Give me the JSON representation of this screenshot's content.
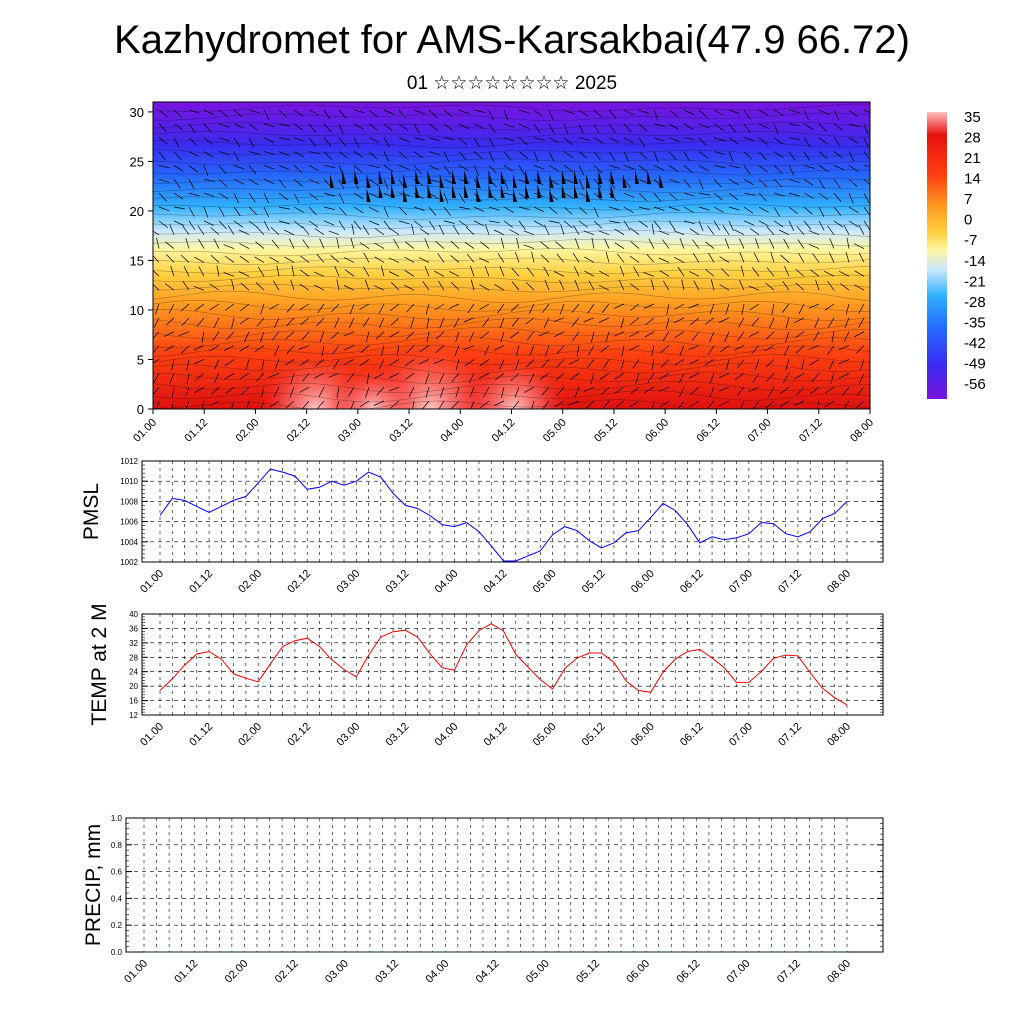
{
  "title": "Kazhydromet for AMS-Karsakbai(47.9 66.72)",
  "subtitle": "01 ☆☆☆☆☆☆☆☆ 2025",
  "x_ticks": [
    "01.00",
    "01.12",
    "02.00",
    "02.12",
    "03.00",
    "03.12",
    "04.00",
    "04.12",
    "05.00",
    "05.12",
    "06.00",
    "06.12",
    "07.00",
    "07.12",
    "08.00"
  ],
  "chart_data": [
    {
      "type": "heatmap",
      "title": "",
      "xlabel": "",
      "ylabel": "",
      "x_ticks": [
        "01.00",
        "01.12",
        "02.00",
        "02.12",
        "03.00",
        "03.12",
        "04.00",
        "04.12",
        "05.00",
        "05.12",
        "06.00",
        "06.12",
        "07.00",
        "07.12",
        "08.00"
      ],
      "y_ticks": [
        0,
        5,
        10,
        15,
        20,
        25,
        30
      ],
      "ylim": [
        0,
        31
      ],
      "colorbar": {
        "labels": [
          "35",
          "28",
          "21",
          "14",
          "7",
          "0",
          "-7",
          "-14",
          "-21",
          "-28",
          "-35",
          "-42",
          "-49",
          "-56"
        ],
        "range": [
          -60,
          38
        ],
        "colors": [
          "#7a12e0",
          "#3a2cf0",
          "#2666ff",
          "#30b8ff",
          "#c9e8ff",
          "#fff6a0",
          "#ffd04a",
          "#ff9a20",
          "#ff4a10",
          "#e81010",
          "#ffc0c0"
        ]
      },
      "overlay": "wind barbs"
    },
    {
      "type": "line",
      "ylabel": "PMSL",
      "ylim": [
        1002,
        1012
      ],
      "y_ticks": [
        1002,
        1004,
        1006,
        1008,
        1010,
        1012
      ],
      "grid": true,
      "series": [
        {
          "color": "#0000ff",
          "values": [
            1006.6,
            1008.3,
            1008.1,
            1007.5,
            1006.9,
            1007.5,
            1008.1,
            1008.5,
            1009.8,
            1011.2,
            1010.9,
            1010.5,
            1009.2,
            1009.4,
            1010.0,
            1009.6,
            1010.0,
            1010.9,
            1010.4,
            1008.8,
            1007.6,
            1007.3,
            1006.6,
            1005.7,
            1005.5,
            1005.9,
            1005.0,
            1003.6,
            1002.1,
            1002.1,
            1002.6,
            1003.1,
            1004.7,
            1005.5,
            1005.1,
            1004.1,
            1003.4,
            1003.9,
            1004.9,
            1005.1,
            1006.4,
            1007.8,
            1007.1,
            1005.7,
            1003.9,
            1004.5,
            1004.2,
            1004.4,
            1004.8,
            1005.9,
            1005.8,
            1004.8,
            1004.5,
            1005.0,
            1006.3,
            1006.8,
            1008.0
          ]
        }
      ]
    },
    {
      "type": "line",
      "ylabel": "TEMP at 2 M",
      "ylim": [
        12,
        40
      ],
      "y_ticks": [
        12,
        16,
        20,
        24,
        28,
        32,
        36,
        40
      ],
      "grid": true,
      "series": [
        {
          "color": "#ff0000",
          "values": [
            18.8,
            22.0,
            25.8,
            28.9,
            29.6,
            27.5,
            23.4,
            22.2,
            21.2,
            26.2,
            31.0,
            32.6,
            33.3,
            31.0,
            27.3,
            24.6,
            22.6,
            28.6,
            33.6,
            35.1,
            35.5,
            33.6,
            29.0,
            25.1,
            24.4,
            31.5,
            35.4,
            37.3,
            35.3,
            28.8,
            25.3,
            21.8,
            19.2,
            24.9,
            27.8,
            29.2,
            29.2,
            26.6,
            21.4,
            18.8,
            18.3,
            23.9,
            27.5,
            29.6,
            30.2,
            27.8,
            25.1,
            21.0,
            21.1,
            24.0,
            27.7,
            28.6,
            28.4,
            23.7,
            19.4,
            16.8,
            14.8
          ]
        }
      ]
    },
    {
      "type": "line",
      "ylabel": "PRECIP, mm",
      "ylim": [
        0,
        1
      ],
      "y_ticks": [
        "0.0",
        "0.2",
        "0.4",
        "0.6",
        "0.8",
        "1.0"
      ],
      "grid": true,
      "series": [
        {
          "color": "#003300",
          "values": [
            0,
            0,
            0,
            0,
            0,
            0,
            0,
            0,
            0,
            0,
            0,
            0,
            0,
            0,
            0,
            0,
            0,
            0,
            0,
            0,
            0,
            0,
            0,
            0,
            0,
            0,
            0,
            0,
            0,
            0,
            0,
            0,
            0,
            0,
            0,
            0,
            0,
            0,
            0,
            0,
            0,
            0,
            0,
            0,
            0,
            0,
            0,
            0,
            0,
            0,
            0,
            0,
            0,
            0,
            0,
            0,
            0
          ]
        }
      ]
    }
  ]
}
